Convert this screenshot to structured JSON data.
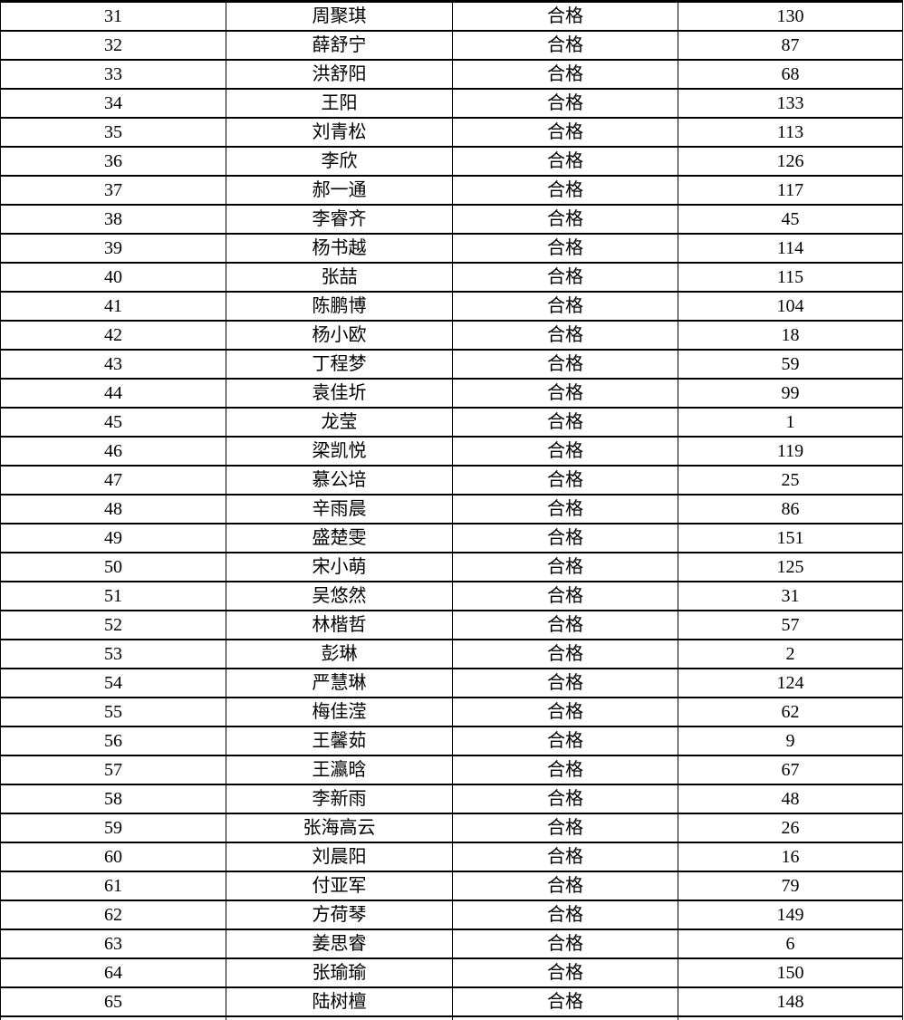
{
  "table": {
    "status_label": "合格",
    "rows": [
      {
        "no": "31",
        "name": "周聚琪",
        "status": "合格",
        "value": "130"
      },
      {
        "no": "32",
        "name": "薛舒宁",
        "status": "合格",
        "value": "87"
      },
      {
        "no": "33",
        "name": "洪舒阳",
        "status": "合格",
        "value": "68"
      },
      {
        "no": "34",
        "name": "王阳",
        "status": "合格",
        "value": "133"
      },
      {
        "no": "35",
        "name": "刘青松",
        "status": "合格",
        "value": "113"
      },
      {
        "no": "36",
        "name": "李欣",
        "status": "合格",
        "value": "126"
      },
      {
        "no": "37",
        "name": "郝一通",
        "status": "合格",
        "value": "117"
      },
      {
        "no": "38",
        "name": "李睿齐",
        "status": "合格",
        "value": "45"
      },
      {
        "no": "39",
        "name": "杨书越",
        "status": "合格",
        "value": "114"
      },
      {
        "no": "40",
        "name": "张喆",
        "status": "合格",
        "value": "115"
      },
      {
        "no": "41",
        "name": "陈鹏博",
        "status": "合格",
        "value": "104"
      },
      {
        "no": "42",
        "name": "杨小欧",
        "status": "合格",
        "value": "18"
      },
      {
        "no": "43",
        "name": "丁程梦",
        "status": "合格",
        "value": "59"
      },
      {
        "no": "44",
        "name": "袁佳圻",
        "status": "合格",
        "value": "99"
      },
      {
        "no": "45",
        "name": "龙莹",
        "status": "合格",
        "value": "1"
      },
      {
        "no": "46",
        "name": "梁凯悦",
        "status": "合格",
        "value": "119"
      },
      {
        "no": "47",
        "name": "慕公培",
        "status": "合格",
        "value": "25"
      },
      {
        "no": "48",
        "name": "辛雨晨",
        "status": "合格",
        "value": "86"
      },
      {
        "no": "49",
        "name": "盛楚雯",
        "status": "合格",
        "value": "151"
      },
      {
        "no": "50",
        "name": "宋小萌",
        "status": "合格",
        "value": "125"
      },
      {
        "no": "51",
        "name": "吴悠然",
        "status": "合格",
        "value": "31"
      },
      {
        "no": "52",
        "name": "林楷哲",
        "status": "合格",
        "value": "57"
      },
      {
        "no": "53",
        "name": "彭琳",
        "status": "合格",
        "value": "2"
      },
      {
        "no": "54",
        "name": "严慧琳",
        "status": "合格",
        "value": "124"
      },
      {
        "no": "55",
        "name": "梅佳滢",
        "status": "合格",
        "value": "62"
      },
      {
        "no": "56",
        "name": "王馨茹",
        "status": "合格",
        "value": "9"
      },
      {
        "no": "57",
        "name": "王瀛晗",
        "status": "合格",
        "value": "67"
      },
      {
        "no": "58",
        "name": "李新雨",
        "status": "合格",
        "value": "48"
      },
      {
        "no": "59",
        "name": "张海高云",
        "status": "合格",
        "value": "26"
      },
      {
        "no": "60",
        "name": "刘晨阳",
        "status": "合格",
        "value": "16"
      },
      {
        "no": "61",
        "name": "付亚军",
        "status": "合格",
        "value": "79"
      },
      {
        "no": "62",
        "name": "方荷琴",
        "status": "合格",
        "value": "149"
      },
      {
        "no": "63",
        "name": "姜思睿",
        "status": "合格",
        "value": "6"
      },
      {
        "no": "64",
        "name": "张瑜瑜",
        "status": "合格",
        "value": "150"
      },
      {
        "no": "65",
        "name": "陆树檀",
        "status": "合格",
        "value": "148"
      }
    ],
    "colors": {
      "border": "#000000",
      "background": "#ffffff",
      "text": "#000000"
    }
  }
}
